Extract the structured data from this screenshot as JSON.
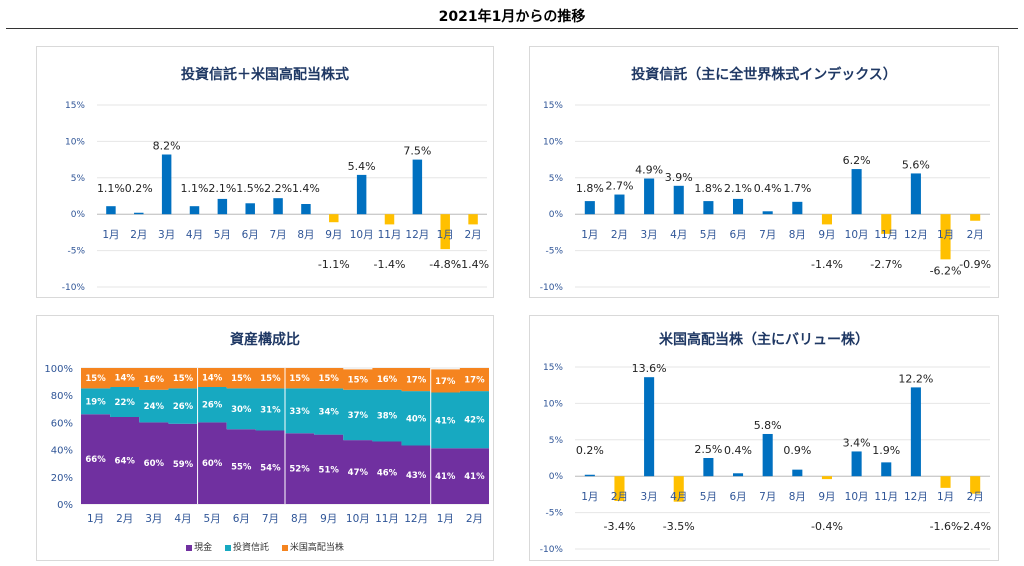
{
  "page_title": "2021年1月からの推移",
  "chart_data": [
    {
      "type": "bar",
      "title": "投資信託＋米国高配当株式",
      "categories": [
        "1月",
        "2月",
        "3月",
        "4月",
        "5月",
        "6月",
        "7月",
        "8月",
        "9月",
        "10月",
        "11月",
        "12月",
        "1月",
        "2月"
      ],
      "values": [
        1.1,
        0.2,
        8.2,
        1.1,
        2.1,
        1.5,
        2.2,
        1.4,
        -1.1,
        5.4,
        -1.4,
        7.5,
        -4.8,
        -1.4
      ],
      "data_labels": [
        "1.1%",
        "0.2%",
        "8.2%",
        "1.1%",
        "2.1%",
        "1.5%",
        "2.2%",
        "1.4%",
        "-1.1%",
        "5.4%",
        "-1.4%",
        "7.5%",
        "-4.8%",
        "-1.4%"
      ],
      "yticks": [
        "15%",
        "10%",
        "5%",
        "0%",
        "-5%",
        "-10%"
      ],
      "ylim": [
        -10,
        15
      ],
      "colors": {
        "positive": "#0070c0",
        "negative": "#ffc000"
      }
    },
    {
      "type": "bar",
      "title": "投資信託（主に全世界株式インデックス）",
      "categories": [
        "1月",
        "2月",
        "3月",
        "4月",
        "5月",
        "6月",
        "7月",
        "8月",
        "9月",
        "10月",
        "11月",
        "12月",
        "1月",
        "2月"
      ],
      "values": [
        1.8,
        2.7,
        4.9,
        3.9,
        1.8,
        2.1,
        0.4,
        1.7,
        -1.4,
        6.2,
        -2.7,
        5.6,
        -6.2,
        -0.9
      ],
      "data_labels": [
        "1.8%",
        "2.7%",
        "4.9%",
        "3.9%",
        "1.8%",
        "2.1%",
        "0.4%",
        "1.7%",
        "-1.4%",
        "6.2%",
        "-2.7%",
        "5.6%",
        "-6.2%",
        "-0.9%"
      ],
      "yticks": [
        "15%",
        "10%",
        "5%",
        "0%",
        "-5%",
        "-10%"
      ],
      "ylim": [
        -10,
        15
      ],
      "colors": {
        "positive": "#0070c0",
        "negative": "#ffc000"
      }
    },
    {
      "type": "area",
      "title": "資産構成比",
      "categories": [
        "1月",
        "2月",
        "3月",
        "4月",
        "5月",
        "6月",
        "7月",
        "8月",
        "9月",
        "10月",
        "11月",
        "12月",
        "1月",
        "2月"
      ],
      "yticks": [
        "100%",
        "80%",
        "60%",
        "40%",
        "20%",
        "0%"
      ],
      "ylim": [
        0,
        100
      ],
      "series": [
        {
          "name": "現金",
          "color": "#7030a0",
          "values": [
            66,
            64,
            60,
            59,
            60,
            55,
            54,
            52,
            51,
            47,
            46,
            43,
            41,
            41
          ],
          "labels": [
            "66%",
            "64%",
            "60%",
            "59%",
            "60%",
            "55%",
            "54%",
            "52%",
            "51%",
            "47%",
            "46%",
            "43%",
            "41%",
            "41%"
          ]
        },
        {
          "name": "投資信託",
          "color": "#17a9c1",
          "values": [
            19,
            22,
            24,
            26,
            26,
            30,
            31,
            33,
            34,
            37,
            38,
            40,
            41,
            42
          ],
          "labels": [
            "19%",
            "22%",
            "24%",
            "26%",
            "26%",
            "30%",
            "31%",
            "33%",
            "34%",
            "37%",
            "38%",
            "40%",
            "41%",
            "42%"
          ]
        },
        {
          "name": "米国高配当株",
          "color": "#f5841f",
          "values": [
            15,
            14,
            16,
            15,
            14,
            15,
            15,
            15,
            15,
            15,
            16,
            17,
            17,
            17
          ],
          "labels": [
            "15%",
            "14%",
            "16%",
            "15%",
            "14%",
            "15%",
            "15%",
            "15%",
            "15%",
            "15%",
            "16%",
            "17%",
            "17%",
            "17%"
          ]
        }
      ],
      "legend_position": "bottom"
    },
    {
      "type": "bar",
      "title": "米国高配当株（主にバリュー株）",
      "categories": [
        "1月",
        "2月",
        "3月",
        "4月",
        "5月",
        "6月",
        "7月",
        "8月",
        "9月",
        "10月",
        "11月",
        "12月",
        "1月",
        "2月"
      ],
      "values": [
        0.2,
        -3.4,
        13.6,
        -3.5,
        2.5,
        0.4,
        5.8,
        0.9,
        -0.4,
        3.4,
        1.9,
        12.2,
        -1.6,
        -2.4
      ],
      "data_labels": [
        "0.2%",
        "-3.4%",
        "13.6%",
        "-3.5%",
        "2.5%",
        "0.4%",
        "5.8%",
        "0.9%",
        "-0.4%",
        "3.4%",
        "1.9%",
        "12.2%",
        "-1.6%",
        "-2.4%"
      ],
      "yticks": [
        "15%",
        "10%",
        "5%",
        "0%",
        "-5%",
        "-10%"
      ],
      "ylim": [
        -10,
        15
      ],
      "colors": {
        "positive": "#0070c0",
        "negative": "#ffc000"
      }
    }
  ]
}
